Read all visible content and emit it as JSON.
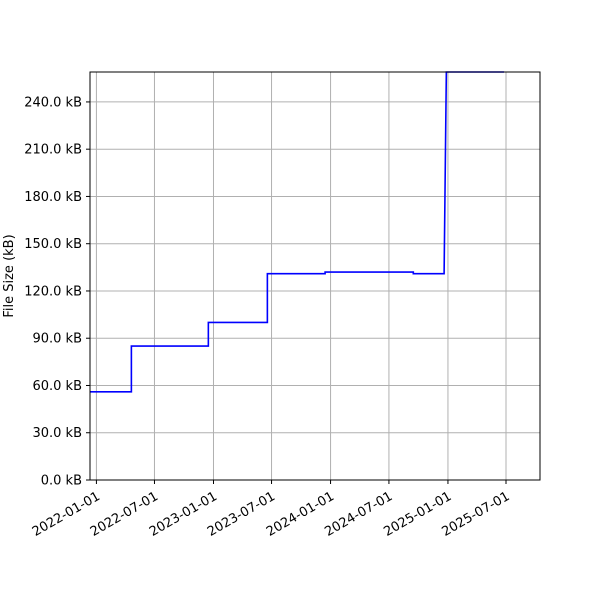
{
  "chart_data": {
    "type": "line",
    "title": "",
    "xlabel": "",
    "ylabel": "File Size (kB)",
    "grid": true,
    "legend": "none",
    "line_color": "#0000ff",
    "x_axis_type": "date",
    "xlim": [
      "2021-12-12",
      "2025-10-15"
    ],
    "ylim": [
      0,
      259
    ],
    "x_ticks": [
      "2022-01-01",
      "2022-07-01",
      "2023-01-01",
      "2023-07-01",
      "2024-01-01",
      "2024-07-01",
      "2025-01-01",
      "2025-07-01"
    ],
    "y_ticks": [
      0,
      30,
      60,
      90,
      120,
      150,
      180,
      210,
      240
    ],
    "y_tick_labels": [
      "0.0 kB",
      "30.0 kB",
      "60.0 kB",
      "90.0 kB",
      "120.0 kB",
      "150.0 kB",
      "180.0 kB",
      "210.0 kB",
      "240.0 kB"
    ],
    "series": [
      {
        "name": "",
        "step": true,
        "points": [
          {
            "x": "2021-12-12",
            "y": 56
          },
          {
            "x": "2022-04-20",
            "y": 56
          },
          {
            "x": "2022-04-20",
            "y": 85
          },
          {
            "x": "2022-12-16",
            "y": 85
          },
          {
            "x": "2022-12-16",
            "y": 100
          },
          {
            "x": "2023-06-18",
            "y": 100
          },
          {
            "x": "2023-06-18",
            "y": 131
          },
          {
            "x": "2023-12-15",
            "y": 131
          },
          {
            "x": "2023-12-15",
            "y": 132
          },
          {
            "x": "2024-09-15",
            "y": 132
          },
          {
            "x": "2024-09-15",
            "y": 131
          },
          {
            "x": "2024-12-20",
            "y": 131
          },
          {
            "x": "2024-12-27",
            "y": 259
          },
          {
            "x": "2025-06-25",
            "y": 259
          }
        ]
      }
    ]
  }
}
